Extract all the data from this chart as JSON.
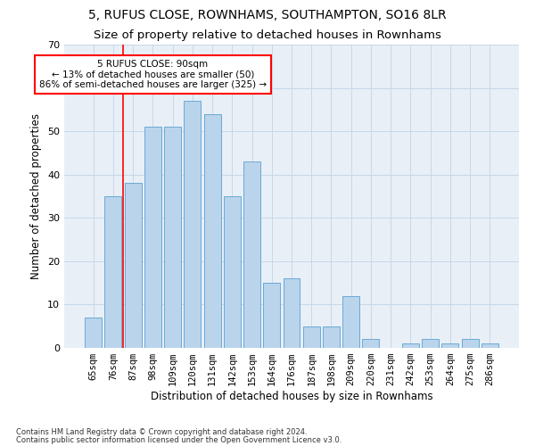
{
  "title1": "5, RUFUS CLOSE, ROWNHAMS, SOUTHAMPTON, SO16 8LR",
  "title2": "Size of property relative to detached houses in Rownhams",
  "xlabel": "Distribution of detached houses by size in Rownhams",
  "ylabel": "Number of detached properties",
  "categories": [
    "65sqm",
    "76sqm",
    "87sqm",
    "98sqm",
    "109sqm",
    "120sqm",
    "131sqm",
    "142sqm",
    "153sqm",
    "164sqm",
    "176sqm",
    "187sqm",
    "198sqm",
    "209sqm",
    "220sqm",
    "231sqm",
    "242sqm",
    "253sqm",
    "264sqm",
    "275sqm",
    "286sqm"
  ],
  "values": [
    7,
    35,
    38,
    51,
    51,
    57,
    54,
    35,
    43,
    15,
    16,
    5,
    5,
    12,
    2,
    0,
    1,
    2,
    1,
    2,
    1
  ],
  "bar_color": "#bad4ec",
  "bar_edge_color": "#6aaad4",
  "bar_width": 0.85,
  "ylim": [
    0,
    70
  ],
  "yticks": [
    0,
    10,
    20,
    30,
    40,
    50,
    60,
    70
  ],
  "red_line_x": 2.0,
  "annotation_text": "5 RUFUS CLOSE: 90sqm\n← 13% of detached houses are smaller (50)\n86% of semi-detached houses are larger (325) →",
  "footnote1": "Contains HM Land Registry data © Crown copyright and database right 2024.",
  "footnote2": "Contains public sector information licensed under the Open Government Licence v3.0.",
  "bg_color": "#ffffff",
  "grid_color": "#c8d8e8",
  "title_fontsize": 10,
  "subtitle_fontsize": 9.5,
  "axis_label_fontsize": 8.5,
  "tick_fontsize": 7.5,
  "footnote_fontsize": 6
}
